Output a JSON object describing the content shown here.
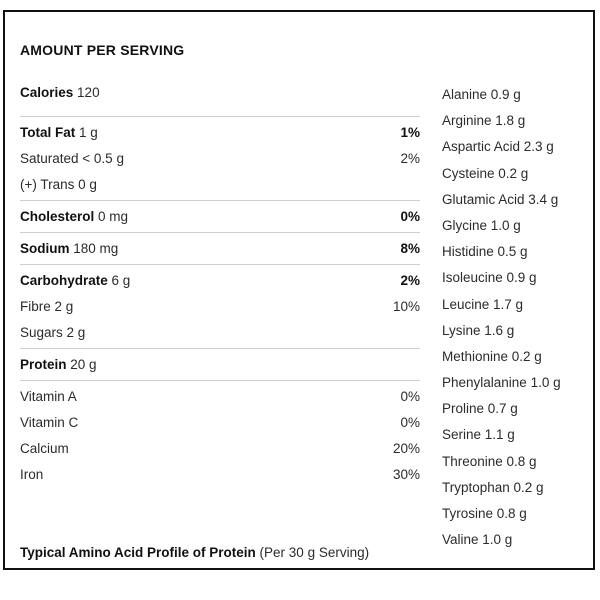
{
  "heading": "AMOUNT PER SERVING",
  "calories": {
    "label": "Calories",
    "value": "120"
  },
  "total_fat": {
    "label": "Total Fat",
    "value": "1 g",
    "pct": "1%"
  },
  "saturated": {
    "label": "Saturated < 0.5 g",
    "pct": "2%"
  },
  "trans": {
    "label": "(+) Trans 0 g"
  },
  "cholesterol": {
    "label": "Cholesterol",
    "value": "0 mg",
    "pct": "0%"
  },
  "sodium": {
    "label": "Sodium",
    "value": "180 mg",
    "pct": "8%"
  },
  "carbohydrate": {
    "label": "Carbohydrate",
    "value": "6 g",
    "pct": "2%"
  },
  "fibre": {
    "label": "Fibre 2 g",
    "pct": "10%"
  },
  "sugars": {
    "label": "Sugars 2 g"
  },
  "protein": {
    "label": "Protein",
    "value": "20 g"
  },
  "vitamins": [
    {
      "label": "Vitamin A",
      "pct": "0%"
    },
    {
      "label": "Vitamin C",
      "pct": "0%"
    },
    {
      "label": "Calcium",
      "pct": "20%"
    },
    {
      "label": "Iron",
      "pct": "30%"
    }
  ],
  "footer": {
    "label": "Typical Amino Acid Profile of Protein",
    "note": "(Per 30 g Serving)"
  },
  "amino_acids": [
    "Alanine 0.9 g",
    "Arginine 1.8 g",
    "Aspartic Acid 2.3 g",
    "Cysteine 0.2 g",
    "Glutamic Acid 3.4 g",
    "Glycine 1.0 g",
    "Histidine 0.5 g",
    "Isoleucine 0.9 g",
    "Leucine 1.7 g",
    "Lysine 1.6 g",
    "Methionine 0.2 g",
    "Phenylalanine 1.0 g",
    "Proline 0.7 g",
    "Serine 1.1 g",
    "Threonine 0.8 g",
    "Tryptophan 0.2 g",
    "Tyrosine 0.8 g",
    "Valine 1.0 g"
  ]
}
